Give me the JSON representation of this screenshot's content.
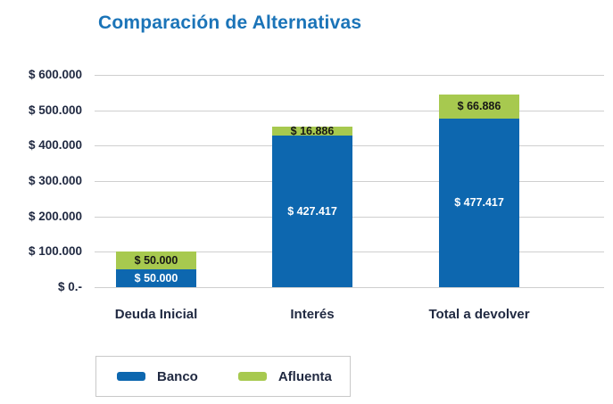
{
  "chart_data": {
    "type": "bar",
    "stacked": true,
    "title": "Comparación de Alternativas",
    "categories": [
      "Deuda Inicial",
      "Interés",
      "Total a devolver"
    ],
    "series": [
      {
        "name": "Banco",
        "color": "#0D67AF",
        "values": [
          50000,
          427417,
          477417
        ],
        "labels": [
          "$ 50.000",
          "$ 427.417",
          "$ 477.417"
        ],
        "label_color": "#FFFFFF"
      },
      {
        "name": "Afluenta",
        "color": "#A7C94F",
        "values": [
          50000,
          16886,
          66886
        ],
        "labels": [
          "$ 50.000",
          "$ 16.886",
          "$ 66.886"
        ],
        "label_color": "#161616"
      }
    ],
    "y_ticks": [
      "$ 600.000",
      "$ 500.000",
      "$ 400.000",
      "$ 300.000",
      "$ 200.000",
      "$ 100.000",
      "$ 0.-"
    ],
    "y_tick_values": [
      600000,
      500000,
      400000,
      300000,
      200000,
      100000,
      0
    ],
    "ylim": [
      0,
      600000
    ],
    "grid": true,
    "legend_position": "bottom"
  },
  "legend": {
    "items": [
      {
        "label": "Banco",
        "color": "#0D67AF"
      },
      {
        "label": "Afluenta",
        "color": "#A7C94F"
      }
    ]
  },
  "colors": {
    "title": "#1B74B8",
    "axis_text": "#212A42",
    "gridline": "#CFCFCF",
    "background": "#FFFFFF",
    "legend_border": "#C9C9C9"
  }
}
